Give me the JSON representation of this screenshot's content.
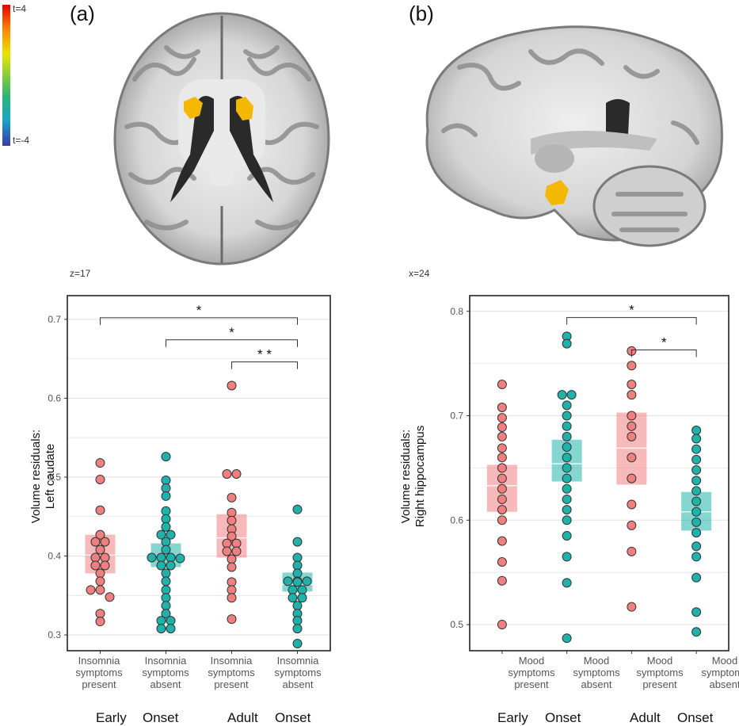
{
  "panels": [
    {
      "label": "(a)",
      "coord": "z=17",
      "colorbar": {
        "top_label": "t=4",
        "bottom_label": "t=-4"
      },
      "chart_data": {
        "type": "scatter",
        "ylabel_line1": "Volume residuals:",
        "ylabel_line2": "Left caudate",
        "ylim": [
          0.28,
          0.73
        ],
        "yticks": [
          "0.3",
          "0.4",
          "0.5",
          "0.6",
          "0.7"
        ],
        "categories": [
          {
            "line1": "Insomnia",
            "line2": "symptoms",
            "line3": "present",
            "color": "#f08080"
          },
          {
            "line1": "Insomnia",
            "line2": "symptoms",
            "line3": "absent",
            "color": "#20b2aa"
          },
          {
            "line1": "Insomnia",
            "line2": "symptoms",
            "line3": "present",
            "color": "#f08080"
          },
          {
            "line1": "Insomnia",
            "line2": "symptoms",
            "line3": "absent",
            "color": "#20b2aa"
          }
        ],
        "group_words": [
          "Early",
          "Onset",
          "Adult",
          "Onset"
        ],
        "series": [
          {
            "values": [
              0.518,
              0.497,
              0.458,
              0.427,
              0.418,
              0.418,
              0.408,
              0.398,
              0.398,
              0.388,
              0.388,
              0.378,
              0.368,
              0.357,
              0.357,
              0.348,
              0.327,
              0.317
            ],
            "box": {
              "low": 0.378,
              "mid": 0.401,
              "high": 0.427
            }
          },
          {
            "values": [
              0.526,
              0.496,
              0.486,
              0.476,
              0.457,
              0.447,
              0.437,
              0.427,
              0.427,
              0.418,
              0.408,
              0.398,
              0.398,
              0.398,
              0.397,
              0.388,
              0.388,
              0.378,
              0.368,
              0.357,
              0.347,
              0.337,
              0.327,
              0.318,
              0.318,
              0.308,
              0.308
            ],
            "box": {
              "low": 0.386,
              "mid": 0.397,
              "high": 0.416
            }
          },
          {
            "values": [
              0.616,
              0.504,
              0.504,
              0.474,
              0.455,
              0.445,
              0.434,
              0.425,
              0.416,
              0.416,
              0.406,
              0.406,
              0.396,
              0.386,
              0.367,
              0.357,
              0.347,
              0.32
            ],
            "box": {
              "low": 0.398,
              "mid": 0.423,
              "high": 0.453
            }
          },
          {
            "values": [
              0.459,
              0.418,
              0.398,
              0.388,
              0.378,
              0.368,
              0.368,
              0.368,
              0.367,
              0.357,
              0.357,
              0.347,
              0.347,
              0.337,
              0.327,
              0.318,
              0.308,
              0.289
            ],
            "box": {
              "low": 0.355,
              "mid": 0.364,
              "high": 0.379
            }
          }
        ],
        "brackets": [
          {
            "from": 0,
            "to": 3,
            "y": 0.702,
            "label": "*"
          },
          {
            "from": 1,
            "to": 3,
            "y": 0.674,
            "label": "*"
          },
          {
            "from": 2,
            "to": 3,
            "y": 0.646,
            "label": "* *"
          }
        ]
      }
    },
    {
      "label": "(b)",
      "coord": "x=24",
      "chart_data": {
        "type": "scatter",
        "ylabel_line1": "Volume residuals:",
        "ylabel_line2": "Right hippocampus",
        "ylim": [
          0.475,
          0.815
        ],
        "yticks": [
          "0.5",
          "0.6",
          "0.7",
          "0.8"
        ],
        "categories": [
          {
            "line1": "Mood",
            "line2": "symptoms",
            "line3": "present",
            "color": "#f08080"
          },
          {
            "line1": "Mood",
            "line2": "symptoms",
            "line3": "absent",
            "color": "#20b2aa"
          },
          {
            "line1": "Mood",
            "line2": "symptoms",
            "line3": "present",
            "color": "#f08080"
          },
          {
            "line1": "Mood",
            "line2": "symptoms",
            "line3": "absent",
            "color": "#20b2aa"
          }
        ],
        "group_words": [
          "Early",
          "Onset",
          "Adult",
          "Onset"
        ],
        "series": [
          {
            "values": [
              0.73,
              0.708,
              0.698,
              0.689,
              0.68,
              0.669,
              0.66,
              0.65,
              0.64,
              0.63,
              0.62,
              0.61,
              0.6,
              0.58,
              0.56,
              0.542,
              0.5
            ],
            "box": {
              "low": 0.608,
              "mid": 0.633,
              "high": 0.653
            }
          },
          {
            "values": [
              0.776,
              0.769,
              0.72,
              0.72,
              0.71,
              0.7,
              0.69,
              0.68,
              0.67,
              0.66,
              0.65,
              0.64,
              0.63,
              0.62,
              0.61,
              0.6,
              0.585,
              0.565,
              0.54,
              0.487
            ],
            "box": {
              "low": 0.637,
              "mid": 0.654,
              "high": 0.677
            }
          },
          {
            "values": [
              0.762,
              0.748,
              0.73,
              0.72,
              0.7,
              0.69,
              0.68,
              0.66,
              0.64,
              0.615,
              0.595,
              0.57,
              0.517
            ],
            "box": {
              "low": 0.634,
              "mid": 0.669,
              "high": 0.703
            }
          },
          {
            "values": [
              0.686,
              0.678,
              0.668,
              0.658,
              0.648,
              0.638,
              0.628,
              0.618,
              0.608,
              0.598,
              0.588,
              0.575,
              0.565,
              0.545,
              0.512,
              0.493
            ],
            "box": {
              "low": 0.59,
              "mid": 0.608,
              "high": 0.627
            }
          }
        ],
        "brackets": [
          {
            "from": 1,
            "to": 3,
            "y": 0.794,
            "label": "*"
          },
          {
            "from": 2,
            "to": 3,
            "y": 0.763,
            "label": "*"
          }
        ]
      }
    }
  ]
}
